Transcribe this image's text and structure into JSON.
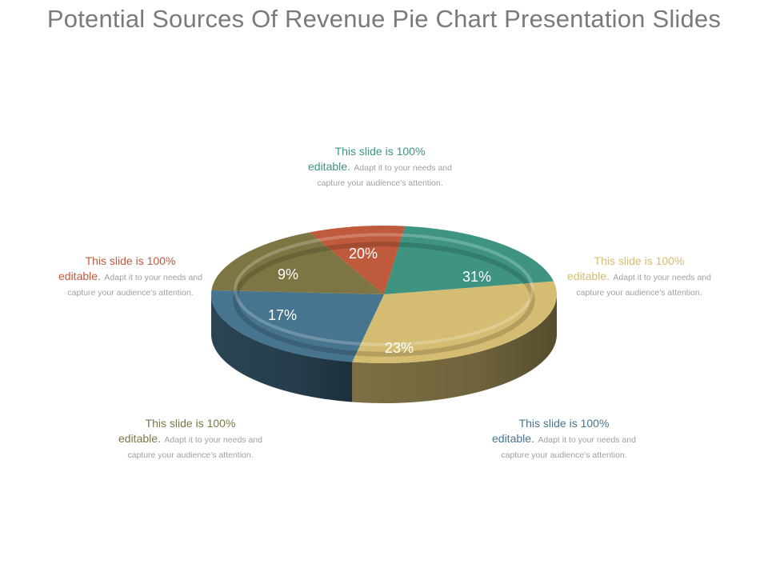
{
  "slide": {
    "title": "Potential Sources Of Revenue Pie Chart Presentation Slides"
  },
  "chart_data": {
    "type": "pie",
    "style": "3d",
    "title": "",
    "slices": [
      {
        "key": "teal",
        "label": "20%",
        "value": 20,
        "color": "#3f9481"
      },
      {
        "key": "sand",
        "label": "31%",
        "value": 31,
        "color": "#d4bd72"
      },
      {
        "key": "blue",
        "label": "23%",
        "value": 23,
        "color": "#47748f"
      },
      {
        "key": "olive",
        "label": "17%",
        "value": 17,
        "color": "#7d7644"
      },
      {
        "key": "red",
        "label": "9%",
        "value": 9,
        "color": "#c05a3c"
      }
    ]
  },
  "callouts": {
    "teal": {
      "headline": "This slide is 100%",
      "headline2": "editable.",
      "body": "Adapt it to your needs and capture your audience's attention.",
      "color": "#3f9481"
    },
    "sand": {
      "headline": "This slide is 100%",
      "headline2": "editable.",
      "body": "Adapt it to your needs and capture your audience's attention.",
      "color": "#d4bd72"
    },
    "red": {
      "headline": "This slide is 100%",
      "headline2": "editable.",
      "body": "Adapt it to your needs and capture your audience's attention.",
      "color": "#c05a3c"
    },
    "olive": {
      "headline": "This slide is 100%",
      "headline2": "editable.",
      "body": "Adapt it to your needs and capture your audience's attention.",
      "color": "#7d7644"
    },
    "blue": {
      "headline": "This slide is 100%",
      "headline2": "editable.",
      "body": "Adapt it to your needs and capture your audience's attention.",
      "color": "#47748f"
    }
  }
}
